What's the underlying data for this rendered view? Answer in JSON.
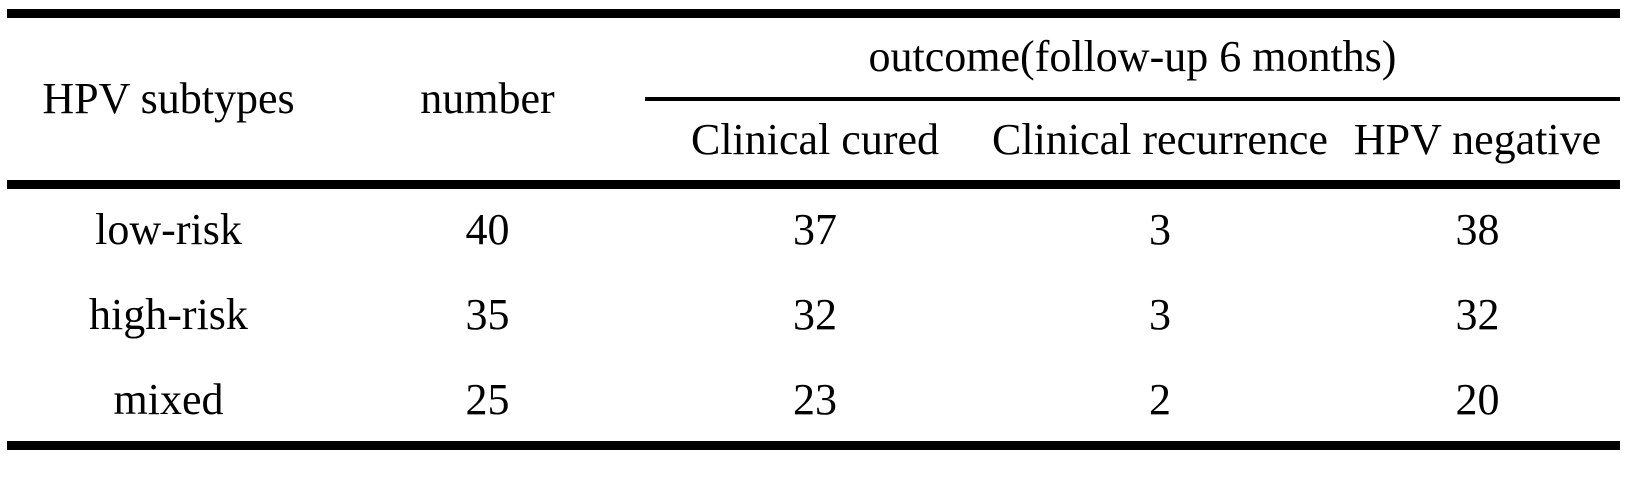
{
  "page": {
    "background_color": "#ffffff",
    "text_color": "#000000",
    "rule_color": "#000000"
  },
  "table": {
    "header": {
      "hpv_subtypes": "HPV subtypes",
      "number": "number",
      "outcome_group": "outcome(follow-up 6 months)",
      "sub_columns": [
        "Clinical cured",
        "Clinical recurrence",
        "HPV negative"
      ]
    },
    "rows": [
      {
        "subtype": "low-risk",
        "number": "40",
        "clinical_cured": "37",
        "clinical_recurrence": "3",
        "hpv_negative": "38"
      },
      {
        "subtype": "high-risk",
        "number": "35",
        "clinical_cured": "32",
        "clinical_recurrence": "3",
        "hpv_negative": "32"
      },
      {
        "subtype": "mixed",
        "number": "25",
        "clinical_cured": "23",
        "clinical_recurrence": "2",
        "hpv_negative": "20"
      }
    ]
  },
  "chart_data": {
    "type": "table",
    "title": "",
    "columns": [
      "HPV subtypes",
      "number",
      "Clinical cured",
      "Clinical recurrence",
      "HPV negative"
    ],
    "column_group": {
      "label": "outcome(follow-up 6 months)",
      "spans": [
        "Clinical cured",
        "Clinical recurrence",
        "HPV negative"
      ]
    },
    "rows": [
      [
        "low-risk",
        40,
        37,
        3,
        38
      ],
      [
        "high-risk",
        35,
        32,
        3,
        32
      ],
      [
        "mixed",
        25,
        23,
        2,
        20
      ]
    ]
  }
}
